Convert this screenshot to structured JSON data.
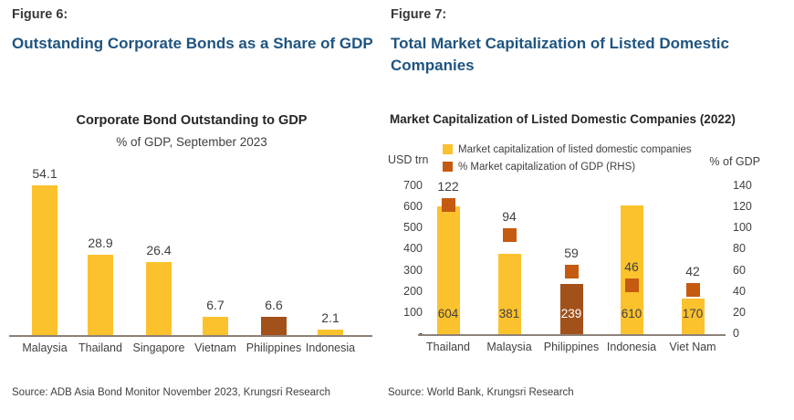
{
  "page": {
    "colors": {
      "heading_blue": "#1F5480",
      "text_dark": "#3B3838",
      "text_gray": "#404040",
      "bar_yellow": "#FCC22D",
      "bar_brown": "#A3511B",
      "marker_orange": "#C55A11",
      "axis_line": "#8C8178",
      "background": "#FFFFFF"
    }
  },
  "figures": [
    {
      "label": "Figure 6:",
      "title": "Outstanding Corporate Bonds as a Share of GDP",
      "source": "Source: ADB Asia Bond Monitor November 2023, Krungsri Research"
    },
    {
      "label": "Figure 7:",
      "title": "Total Market Capitalization of Listed Domestic Companies",
      "source": "Source: World Bank, Krungsri Research"
    }
  ],
  "chart_data": [
    {
      "type": "bar",
      "title": "Corporate Bond Outstanding to GDP",
      "subtitle": "% of GDP, September 2023",
      "xlabel": "",
      "ylabel": "% of GDP",
      "categories": [
        "Malaysia",
        "Thailand",
        "Singapore",
        "Vietnam",
        "Philippines",
        "Indonesia"
      ],
      "values": [
        54.1,
        28.9,
        26.4,
        6.7,
        6.6,
        2.1
      ],
      "value_labels": [
        "54.1",
        "28.9",
        "26.4",
        "6.7",
        "6.6",
        "2.1"
      ],
      "bar_colors": [
        "#FCC22D",
        "#FCC22D",
        "#FCC22D",
        "#FCC22D",
        "#A3511B",
        "#FCC22D"
      ],
      "ylim": [
        0,
        60
      ],
      "grid": false,
      "axis_ticks_shown": false,
      "data_labels_position": "above-bars"
    },
    {
      "type": "bar",
      "subtype": "combo-bar-with-square-markers",
      "title": "Market Capitalization of Listed Domestic Companies (2022)",
      "left_axis_unit": "USD trn",
      "right_axis_unit": "% of GDP",
      "categories": [
        "Thailand",
        "Malaysia",
        "Philippines",
        "Indonesia",
        "Viet Nam"
      ],
      "series": [
        {
          "name": "Market capitalization of listed domestic companies",
          "type": "bar",
          "axis": "left",
          "values": [
            604,
            381,
            239,
            610,
            170
          ],
          "value_labels": [
            "604",
            "381",
            "239",
            "610",
            "170"
          ],
          "bar_colors": [
            "#FCC22D",
            "#FCC22D",
            "#A3511B",
            "#FCC22D",
            "#FCC22D"
          ],
          "label_colors": [
            "#404040",
            "#404040",
            "#FFFFFF",
            "#404040",
            "#404040"
          ],
          "legend_color": "#FCC22D"
        },
        {
          "name": "% Market capitalization of GDP (RHS)",
          "type": "square-marker",
          "axis": "right",
          "values": [
            122,
            94,
            59,
            46,
            42
          ],
          "value_labels": [
            "122",
            "94",
            "59",
            "46",
            "42"
          ],
          "legend_color": "#C55A11"
        }
      ],
      "left_ticks": [
        {
          "label": "700",
          "value": 700
        },
        {
          "label": "600",
          "value": 600
        },
        {
          "label": "500",
          "value": 500
        },
        {
          "label": "400",
          "value": 400
        },
        {
          "label": "300",
          "value": 300
        },
        {
          "label": "200",
          "value": 200
        },
        {
          "label": "100",
          "value": 100
        },
        {
          "label": "-",
          "value": 0
        }
      ],
      "right_ticks": [
        {
          "label": "140",
          "value": 140
        },
        {
          "label": "120",
          "value": 120
        },
        {
          "label": "100",
          "value": 100
        },
        {
          "label": "80",
          "value": 80
        },
        {
          "label": "60",
          "value": 60
        },
        {
          "label": "40",
          "value": 40
        },
        {
          "label": "20",
          "value": 20
        },
        {
          "label": "0",
          "value": 0
        }
      ],
      "ylim_left": [
        0,
        700
      ],
      "ylim_right": [
        0,
        140
      ],
      "grid": false,
      "legend_position": "top"
    }
  ]
}
